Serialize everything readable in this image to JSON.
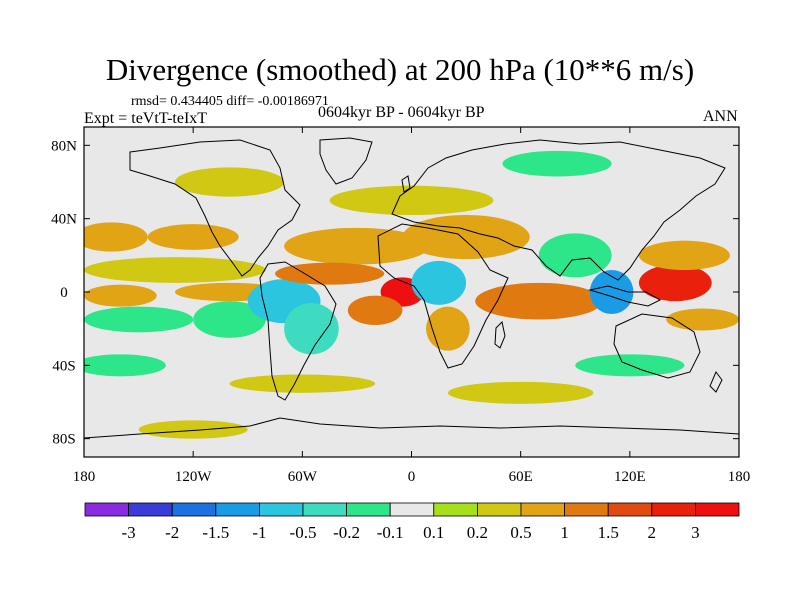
{
  "title": "Divergence (smoothed) at 200 hPa (10**6 m/s)",
  "stats_line": "rmsd= 0.434405 diff= -0.00186971",
  "experiment": "Expt = teVtT-teIxT",
  "period": "0604kyr BP - 0604kyr BP",
  "season": "ANN",
  "map": {
    "projection": "cylindrical-equidistant",
    "lon_range": [
      -180,
      180
    ],
    "lat_range": [
      -90,
      90
    ],
    "lon_ticks": [
      {
        "value": -180,
        "label": "180"
      },
      {
        "value": -120,
        "label": "120W"
      },
      {
        "value": -60,
        "label": "60W"
      },
      {
        "value": 0,
        "label": "0"
      },
      {
        "value": 60,
        "label": "60E"
      },
      {
        "value": 120,
        "label": "120E"
      },
      {
        "value": 180,
        "label": "180"
      }
    ],
    "lat_ticks": [
      {
        "value": 80,
        "label": "80N"
      },
      {
        "value": 40,
        "label": "40N"
      },
      {
        "value": 0,
        "label": "0"
      },
      {
        "value": -40,
        "label": "40S"
      },
      {
        "value": -80,
        "label": "80S"
      }
    ],
    "background_color": "#e8e8e8",
    "field_blobs": [
      {
        "lon": -165,
        "lat": 30,
        "rx": 20,
        "ry": 8,
        "level": 0.5
      },
      {
        "lon": -120,
        "lat": 30,
        "rx": 25,
        "ry": 7,
        "level": 0.5
      },
      {
        "lon": -130,
        "lat": 12,
        "rx": 50,
        "ry": 7,
        "level": 0.2
      },
      {
        "lon": -160,
        "lat": -2,
        "rx": 20,
        "ry": 6,
        "level": 0.5
      },
      {
        "lon": -100,
        "lat": 0,
        "rx": 30,
        "ry": 5,
        "level": 0.5
      },
      {
        "lon": -150,
        "lat": -15,
        "rx": 30,
        "ry": 7,
        "level": -0.2
      },
      {
        "lon": -100,
        "lat": -15,
        "rx": 20,
        "ry": 10,
        "level": -0.2
      },
      {
        "lon": -70,
        "lat": -5,
        "rx": 20,
        "ry": 12,
        "level": -1
      },
      {
        "lon": -55,
        "lat": -20,
        "rx": 15,
        "ry": 14,
        "level": -0.5
      },
      {
        "lon": -30,
        "lat": 25,
        "rx": 40,
        "ry": 10,
        "level": 0.5
      },
      {
        "lon": -45,
        "lat": 10,
        "rx": 30,
        "ry": 6,
        "level": 1
      },
      {
        "lon": -5,
        "lat": 0,
        "rx": 12,
        "ry": 8,
        "level": 3
      },
      {
        "lon": -20,
        "lat": -10,
        "rx": 15,
        "ry": 8,
        "level": 1
      },
      {
        "lon": 15,
        "lat": 5,
        "rx": 15,
        "ry": 12,
        "level": -1
      },
      {
        "lon": 20,
        "lat": -20,
        "rx": 12,
        "ry": 12,
        "level": 0.5
      },
      {
        "lon": 30,
        "lat": 30,
        "rx": 35,
        "ry": 12,
        "level": 0.5
      },
      {
        "lon": 70,
        "lat": -5,
        "rx": 35,
        "ry": 10,
        "level": 1
      },
      {
        "lon": 90,
        "lat": 20,
        "rx": 20,
        "ry": 12,
        "level": -0.2
      },
      {
        "lon": 110,
        "lat": 0,
        "rx": 12,
        "ry": 12,
        "level": -1.5
      },
      {
        "lon": 145,
        "lat": 5,
        "rx": 20,
        "ry": 10,
        "level": 2
      },
      {
        "lon": 150,
        "lat": 20,
        "rx": 25,
        "ry": 8,
        "level": 0.5
      },
      {
        "lon": 160,
        "lat": -15,
        "rx": 20,
        "ry": 6,
        "level": 0.5
      },
      {
        "lon": 0,
        "lat": 50,
        "rx": 45,
        "ry": 8,
        "level": 0.2
      },
      {
        "lon": -100,
        "lat": 60,
        "rx": 30,
        "ry": 8,
        "level": 0.2
      },
      {
        "lon": 80,
        "lat": 70,
        "rx": 30,
        "ry": 7,
        "level": -0.2
      },
      {
        "lon": -60,
        "lat": -50,
        "rx": 40,
        "ry": 5,
        "level": 0.2
      },
      {
        "lon": 60,
        "lat": -55,
        "rx": 40,
        "ry": 6,
        "level": 0.2
      },
      {
        "lon": -120,
        "lat": -75,
        "rx": 30,
        "ry": 5,
        "level": 0.2
      },
      {
        "lon": 120,
        "lat": -40,
        "rx": 30,
        "ry": 6,
        "level": -0.2
      },
      {
        "lon": -160,
        "lat": -40,
        "rx": 25,
        "ry": 6,
        "level": -0.2
      }
    ]
  },
  "colorbar": {
    "levels": [
      "-3",
      "-2",
      "-1.5",
      "-1",
      "-0.5",
      "-0.2",
      "-0.1",
      "0.1",
      "0.2",
      "0.5",
      "1",
      "1.5",
      "2",
      "3"
    ],
    "colors": [
      "#8a2be2",
      "#3a3cd8",
      "#1e72e0",
      "#1a9be6",
      "#2cc5e0",
      "#3ddcc0",
      "#2de68a",
      "#e8e8e8",
      "#a6e01c",
      "#d0c812",
      "#e0a414",
      "#e07a10",
      "#e04c10",
      "#e8200c",
      "#ee1010"
    ]
  }
}
